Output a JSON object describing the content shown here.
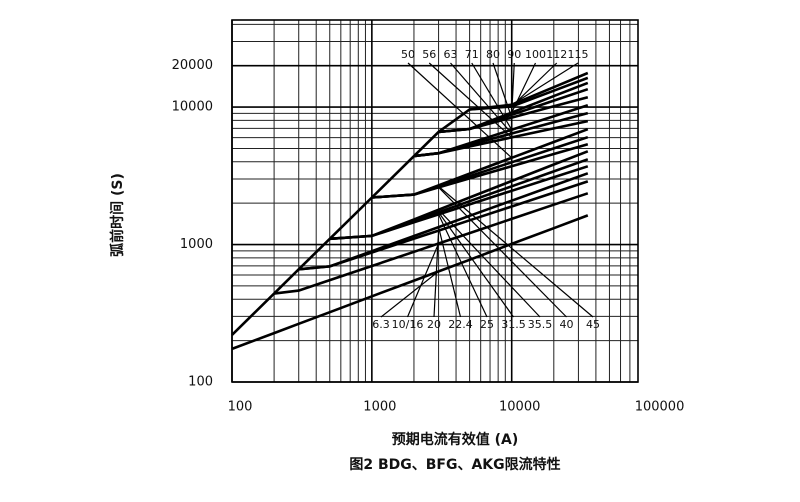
{
  "chart_data": {
    "type": "line",
    "y_label": "弧前时间 (S)",
    "x_label": "预期电流有效值 (A)",
    "caption": "图2 BDG、BFG、AKG限流特性",
    "log_x": true,
    "log_y": true,
    "grid": true,
    "minor_grid": true,
    "xlim": [
      100,
      80000
    ],
    "ylim": [
      100,
      43000
    ],
    "xticks": [
      100,
      1000,
      10000,
      100000
    ],
    "yticks": [
      100,
      1000,
      10000,
      20000
    ],
    "x": [
      100,
      200,
      300,
      500,
      1000,
      2000,
      3000,
      5000,
      10000,
      20000,
      35000
    ],
    "series": [
      {
        "name": "6.3",
        "color": "#000000",
        "label_row": "bottom",
        "values": [
          174,
          227,
          265,
          322,
          420,
          547,
          638,
          775,
          1010,
          1315,
          1630
        ]
      },
      {
        "name": "10/16",
        "color": "#000000",
        "label_row": "bottom",
        "values": [
          null,
          440,
          462,
          551,
          698,
          886,
          1018,
          1212,
          1537,
          1948,
          2360
        ]
      },
      {
        "name": "20",
        "color": "#000000",
        "label_row": "bottom",
        "values": [
          null,
          null,
          660,
          693,
          875,
          1104,
          1263,
          1500,
          1892,
          2387,
          2880
        ]
      },
      {
        "name": "22.4",
        "color": "#000000",
        "label_row": "bottom",
        "values": [
          null,
          null,
          660,
          693,
          895,
          1154,
          1340,
          1617,
          2084,
          2690,
          3300
        ]
      },
      {
        "name": "25",
        "color": "#000000",
        "label_row": "bottom",
        "values": [
          null,
          null,
          null,
          1100,
          1155,
          1452,
          1657,
          1959,
          2459,
          3086,
          3710
        ]
      },
      {
        "name": "31.5",
        "color": "#000000",
        "label_row": "bottom",
        "values": [
          null,
          null,
          null,
          1100,
          1155,
          1485,
          1718,
          2066,
          2654,
          3407,
          4170
        ]
      },
      {
        "name": "35.5",
        "color": "#000000",
        "label_row": "bottom",
        "values": [
          null,
          null,
          null,
          1100,
          1155,
          1524,
          1792,
          2198,
          2897,
          3820,
          4770
        ]
      },
      {
        "name": "40",
        "color": "#000000",
        "label_row": "bottom",
        "values": [
          null,
          null,
          null,
          null,
          2200,
          2310,
          2606,
          3028,
          3715,
          4553,
          5370
        ]
      },
      {
        "name": "45",
        "color": "#000000",
        "label_row": "bottom",
        "values": [
          null,
          null,
          null,
          null,
          2200,
          2310,
          2649,
          3143,
          3966,
          5003,
          6040
        ]
      },
      {
        "name": "50",
        "color": "#000000",
        "label_row": "top",
        "values": [
          null,
          null,
          null,
          null,
          2200,
          2310,
          2699,
          3281,
          4276,
          5573,
          6900
        ]
      },
      {
        "name": "56",
        "color": "#000000",
        "label_row": "top",
        "values": [
          null,
          null,
          null,
          null,
          null,
          4400,
          4620,
          5167,
          6015,
          7000,
          7910
        ]
      },
      {
        "name": "63",
        "color": "#000000",
        "label_row": "top",
        "values": [
          null,
          null,
          null,
          null,
          null,
          4400,
          4620,
          5314,
          6424,
          7757,
          9040
        ]
      },
      {
        "name": "71",
        "color": "#000000",
        "label_row": "top",
        "values": [
          null,
          null,
          null,
          null,
          null,
          4400,
          4620,
          5461,
          6848,
          8585,
          10300
        ]
      },
      {
        "name": "80",
        "color": "#000000",
        "label_row": "top",
        "values": [
          null,
          null,
          null,
          null,
          null,
          null,
          6600,
          6930,
          8383,
          10130,
          11800
        ]
      },
      {
        "name": "90",
        "color": "#000000",
        "label_row": "top",
        "values": [
          null,
          null,
          null,
          null,
          null,
          null,
          6600,
          6930,
          8790,
          11140,
          13500
        ]
      },
      {
        "name": "100",
        "color": "#000000",
        "label_row": "top",
        "values": [
          null,
          null,
          null,
          null,
          null,
          null,
          6600,
          6930,
          9120,
          12010,
          15000
        ]
      },
      {
        "name": "112",
        "color": "#000000",
        "label_row": "top",
        "values": [
          null,
          null,
          null,
          null,
          null,
          null,
          null,
          9600,
          10100,
          13150,
          16300
        ]
      },
      {
        "name": "115",
        "color": "#000000",
        "label_row": "top",
        "values": [
          220,
          440,
          660,
          1100,
          2200,
          4400,
          6600,
          9600,
          10400,
          13960,
          17700
        ]
      }
    ]
  }
}
